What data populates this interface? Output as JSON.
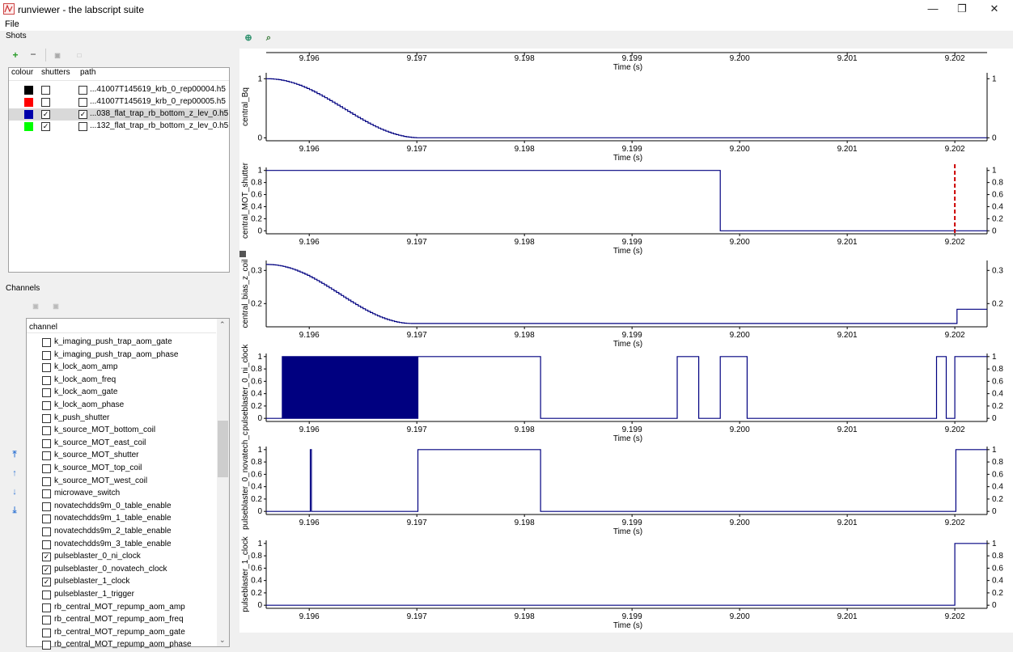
{
  "window": {
    "title": "runviewer - the labscript suite",
    "minimize_icon": "minimize-icon",
    "maximize_icon": "restore-icon",
    "close_icon": "close-icon"
  },
  "menu": {
    "file": "File"
  },
  "shots": {
    "section_label": "Shots",
    "toolbar": {
      "add": "+",
      "remove": "−"
    },
    "columns": {
      "colour": "colour",
      "shutters": "shutters",
      "path": "path"
    },
    "rows": [
      {
        "colour": "#000000",
        "shutters": false,
        "checked": false,
        "path": "...41007T145619_krb_0_rep00004.h5"
      },
      {
        "colour": "#ff0000",
        "shutters": false,
        "checked": false,
        "path": "...41007T145619_krb_0_rep00005.h5"
      },
      {
        "colour": "#0000aa",
        "shutters": true,
        "checked": true,
        "path": "...038_flat_trap_rb_bottom_z_lev_0.h5"
      },
      {
        "colour": "#00ff00",
        "shutters": true,
        "checked": false,
        "path": "...132_flat_trap_rb_bottom_z_lev_0.h5"
      }
    ]
  },
  "channels": {
    "section_label": "Channels",
    "column_header": "channel",
    "items": [
      {
        "name": "k_imaging_push_trap_aom_gate",
        "checked": false
      },
      {
        "name": "k_imaging_push_trap_aom_phase",
        "checked": false
      },
      {
        "name": "k_lock_aom_amp",
        "checked": false
      },
      {
        "name": "k_lock_aom_freq",
        "checked": false
      },
      {
        "name": "k_lock_aom_gate",
        "checked": false
      },
      {
        "name": "k_lock_aom_phase",
        "checked": false
      },
      {
        "name": "k_push_shutter",
        "checked": false
      },
      {
        "name": "k_source_MOT_bottom_coil",
        "checked": false
      },
      {
        "name": "k_source_MOT_east_coil",
        "checked": false
      },
      {
        "name": "k_source_MOT_shutter",
        "checked": false
      },
      {
        "name": "k_source_MOT_top_coil",
        "checked": false
      },
      {
        "name": "k_source_MOT_west_coil",
        "checked": false
      },
      {
        "name": "microwave_switch",
        "checked": false
      },
      {
        "name": "novatechdds9m_0_table_enable",
        "checked": false
      },
      {
        "name": "novatechdds9m_1_table_enable",
        "checked": false
      },
      {
        "name": "novatechdds9m_2_table_enable",
        "checked": false
      },
      {
        "name": "novatechdds9m_3_table_enable",
        "checked": false
      },
      {
        "name": "pulseblaster_0_ni_clock",
        "checked": true
      },
      {
        "name": "pulseblaster_0_novatech_clock",
        "checked": true
      },
      {
        "name": "pulseblaster_1_clock",
        "checked": true
      },
      {
        "name": "pulseblaster_1_trigger",
        "checked": false
      },
      {
        "name": "rb_central_MOT_repump_aom_amp",
        "checked": false
      },
      {
        "name": "rb_central_MOT_repump_aom_freq",
        "checked": false
      },
      {
        "name": "rb_central_MOT_repump_aom_gate",
        "checked": false
      },
      {
        "name": "rb_central_MOT_repump_aom_phase",
        "checked": false
      }
    ]
  },
  "chart_data": {
    "type": "line",
    "x_ticks": [
      "9.196",
      "9.197",
      "9.198",
      "9.199",
      "9.200",
      "9.201",
      "9.202"
    ],
    "xlabel": "Time (s)",
    "xlim": [
      9.1956,
      9.2023
    ],
    "color": "#000080",
    "marker_color": "#cc0000",
    "plots": [
      {
        "ylabel": "central_Bq",
        "y_ticks": [
          "0",
          "1"
        ],
        "tick_values": [
          0,
          1
        ],
        "ylim": [
          -0.05,
          1.1
        ],
        "kind": "cosine_ramp",
        "ramp": {
          "x0": 9.1956,
          "x1": 9.19702,
          "y0": 1.0,
          "y1": 0.0
        },
        "end_value": 0.0
      },
      {
        "ylabel": "central_MOT_shutter",
        "y_ticks": [
          "0",
          "0.2",
          "0.4",
          "0.6",
          "0.8",
          "1"
        ],
        "tick_values": [
          0,
          0.2,
          0.4,
          0.6,
          0.8,
          1
        ],
        "ylim": [
          -0.05,
          1.05
        ],
        "kind": "steps",
        "points": [
          [
            9.1956,
            1
          ],
          [
            9.19982,
            1
          ],
          [
            9.19982,
            0
          ],
          [
            9.2023,
            0
          ]
        ],
        "marker_x": 9.202
      },
      {
        "ylabel": "central_bias_z_coil",
        "y_ticks": [
          "0.2",
          "0.3"
        ],
        "tick_values": [
          0.2,
          0.3
        ],
        "ylim": [
          0.13,
          0.33
        ],
        "kind": "cosine_ramp",
        "ramp": {
          "x0": 9.1956,
          "x1": 9.19695,
          "y0": 0.318,
          "y1": 0.14
        },
        "end_value": 0.14,
        "final_step": {
          "x": 9.20202,
          "y": 0.183
        }
      },
      {
        "ylabel": "pulseblaster_0_ni_clock",
        "y_ticks": [
          "0",
          "0.2",
          "0.4",
          "0.6",
          "0.8",
          "1"
        ],
        "tick_values": [
          0,
          0.2,
          0.4,
          0.6,
          0.8,
          1
        ],
        "ylim": [
          -0.05,
          1.05
        ],
        "kind": "clock",
        "burst": {
          "start": 9.19575,
          "end": 9.19701,
          "period": 1.8e-05
        },
        "points": [
          [
            9.19701,
            1
          ],
          [
            9.19815,
            1
          ],
          [
            9.19815,
            0
          ],
          [
            9.19942,
            0
          ],
          [
            9.19942,
            1
          ],
          [
            9.19962,
            1
          ],
          [
            9.19962,
            0
          ],
          [
            9.19982,
            0
          ],
          [
            9.19982,
            1
          ],
          [
            9.20007,
            1
          ],
          [
            9.20007,
            0
          ],
          [
            9.20183,
            0
          ],
          [
            9.20183,
            1
          ],
          [
            9.20192,
            1
          ],
          [
            9.20192,
            0
          ],
          [
            9.202,
            0
          ],
          [
            9.202,
            1
          ],
          [
            9.2023,
            1
          ]
        ]
      },
      {
        "ylabel": "pulseblaster_0_novatech_c",
        "y_ticks": [
          "0",
          "0.2",
          "0.4",
          "0.6",
          "0.8",
          "1"
        ],
        "tick_values": [
          0,
          0.2,
          0.4,
          0.6,
          0.8,
          1
        ],
        "ylim": [
          -0.05,
          1.05
        ],
        "kind": "steps",
        "points": [
          [
            9.1956,
            0
          ],
          [
            9.19601,
            0
          ],
          [
            9.19601,
            1
          ],
          [
            9.19602,
            1
          ],
          [
            9.19602,
            0
          ],
          [
            9.19701,
            0
          ],
          [
            9.19701,
            1
          ],
          [
            9.19815,
            1
          ],
          [
            9.19815,
            0
          ],
          [
            9.20201,
            0
          ],
          [
            9.20201,
            1
          ],
          [
            9.2023,
            1
          ]
        ]
      },
      {
        "ylabel": "pulseblaster_1_clock",
        "y_ticks": [
          "0",
          "0.2",
          "0.4",
          "0.6",
          "0.8",
          "1"
        ],
        "tick_values": [
          0,
          0.2,
          0.4,
          0.6,
          0.8,
          1
        ],
        "ylim": [
          -0.05,
          1.05
        ],
        "kind": "steps",
        "points": [
          [
            9.1956,
            0
          ],
          [
            9.202,
            0
          ],
          [
            9.202,
            1
          ],
          [
            9.2023,
            1
          ]
        ]
      }
    ]
  }
}
